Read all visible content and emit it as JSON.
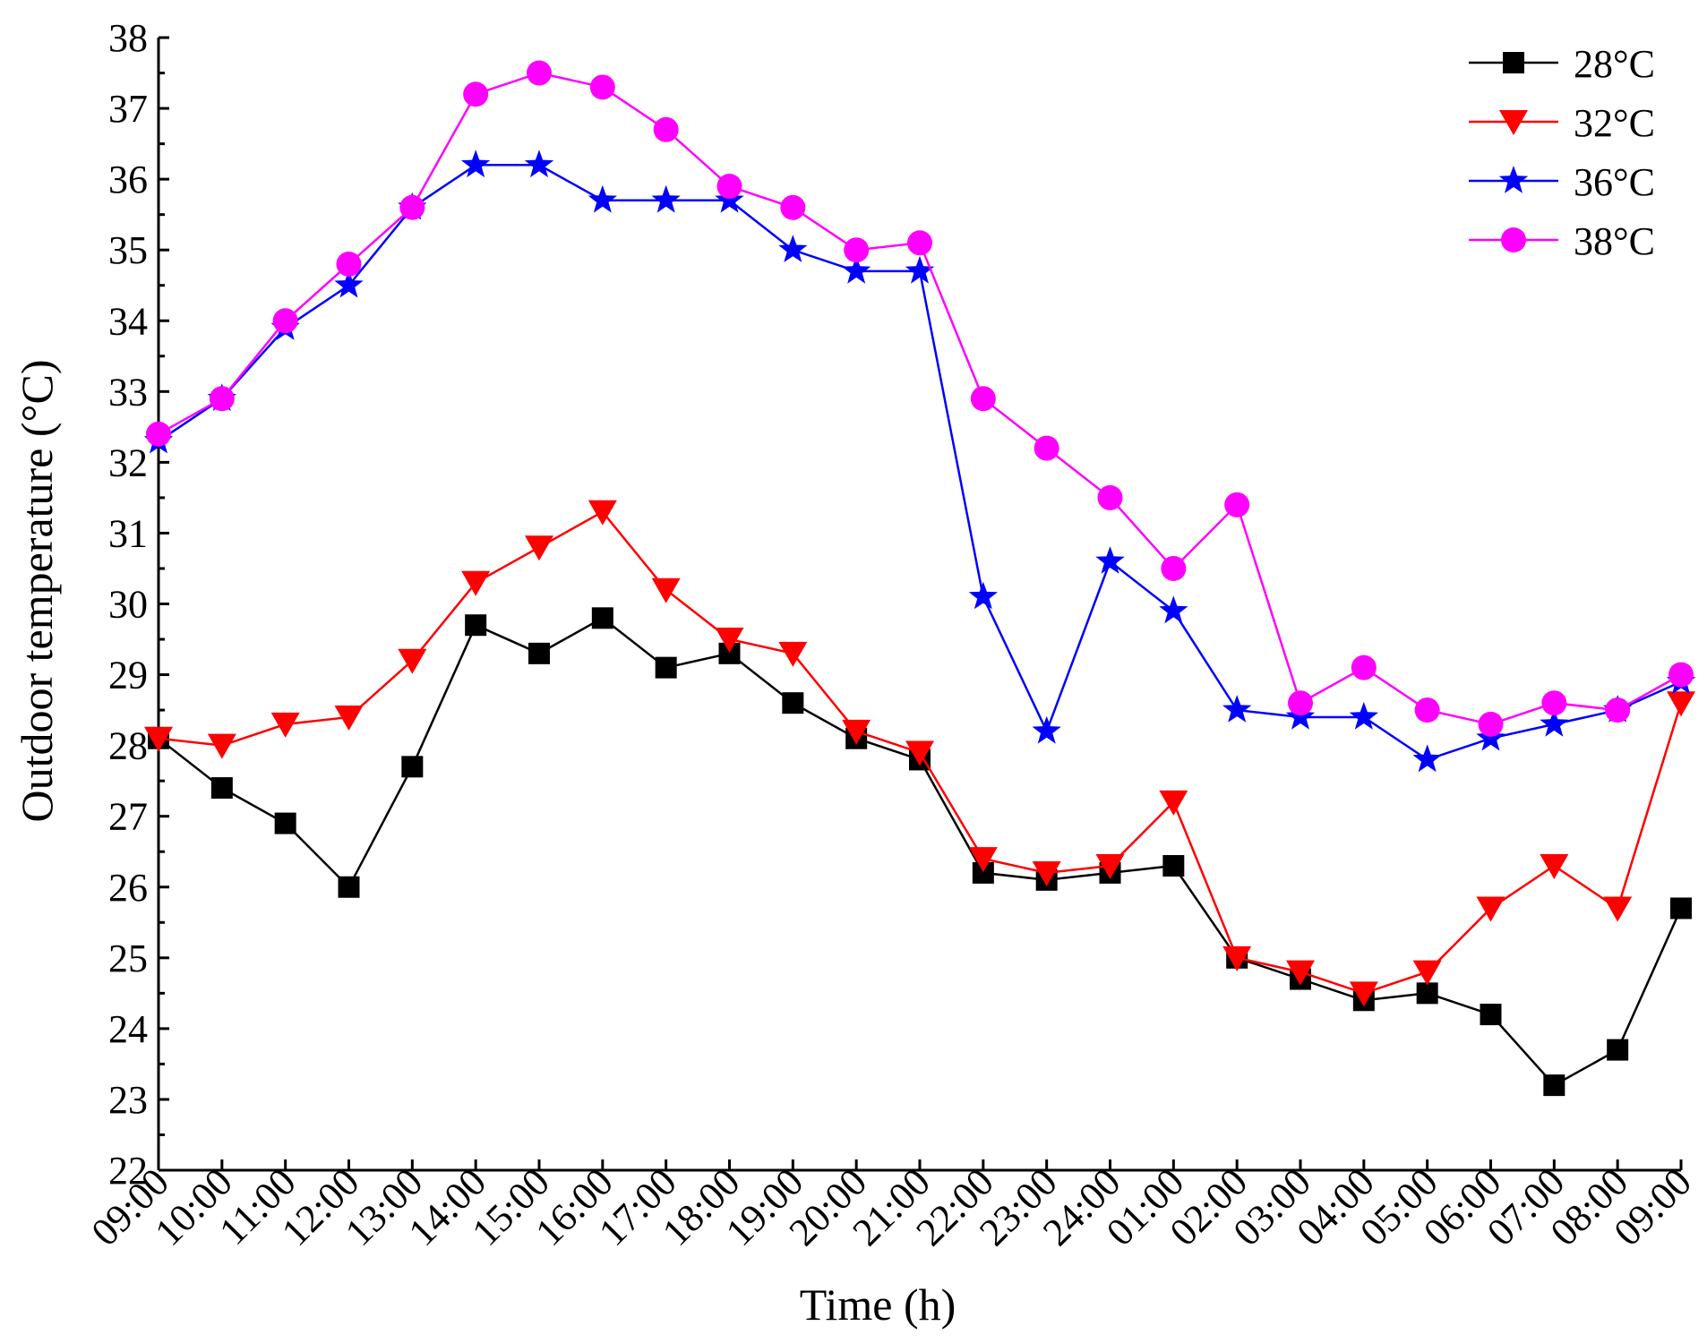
{
  "chart_data": {
    "type": "line",
    "title": "",
    "xlabel": "Time (h)",
    "ylabel": "Outdoor temperature (°C)",
    "ylim": [
      22,
      38
    ],
    "yticks": [
      "22",
      "23",
      "24",
      "25",
      "26",
      "27",
      "28",
      "29",
      "30",
      "31",
      "32",
      "33",
      "34",
      "35",
      "36",
      "37",
      "38"
    ],
    "categories": [
      "09:00",
      "10:00",
      "11:00",
      "12:00",
      "13:00",
      "14:00",
      "15:00",
      "16:00",
      "17:00",
      "18:00",
      "19:00",
      "20:00",
      "21:00",
      "22:00",
      "23:00",
      "24:00",
      "01:00",
      "02:00",
      "03:00",
      "04:00",
      "05:00",
      "06:00",
      "07:00",
      "08:00",
      "09:00"
    ],
    "legend_position": "top-right",
    "grid": false,
    "series": [
      {
        "name": "28°C",
        "color": "#000000",
        "marker": "square",
        "values": [
          28.1,
          27.4,
          26.9,
          26.0,
          27.7,
          29.7,
          29.3,
          29.8,
          29.1,
          29.3,
          28.6,
          28.1,
          27.8,
          26.2,
          26.1,
          26.2,
          26.3,
          25.0,
          24.7,
          24.4,
          24.5,
          24.2,
          23.2,
          23.7,
          25.7
        ]
      },
      {
        "name": "32°C",
        "color": "#ff0000",
        "marker": "triangle-down",
        "values": [
          28.1,
          28.0,
          28.3,
          28.4,
          29.2,
          30.3,
          30.8,
          31.3,
          30.2,
          29.5,
          29.3,
          28.2,
          27.9,
          26.4,
          26.2,
          26.3,
          27.2,
          25.0,
          24.8,
          24.5,
          24.8,
          25.7,
          26.3,
          25.7,
          28.6
        ]
      },
      {
        "name": "36°C",
        "color": "#0000ff",
        "marker": "star",
        "values": [
          32.3,
          32.9,
          33.9,
          34.5,
          35.6,
          36.2,
          36.2,
          35.7,
          35.7,
          35.7,
          35.0,
          34.7,
          34.7,
          30.1,
          28.2,
          30.6,
          29.9,
          28.5,
          28.4,
          28.4,
          27.8,
          28.1,
          28.3,
          28.5,
          28.9
        ]
      },
      {
        "name": "38°C",
        "color": "#ff00ff",
        "marker": "circle",
        "values": [
          32.4,
          32.9,
          34.0,
          34.8,
          35.6,
          37.2,
          37.5,
          37.3,
          36.7,
          35.9,
          35.6,
          35.0,
          35.1,
          32.9,
          32.2,
          31.5,
          30.5,
          31.4,
          28.6,
          29.1,
          28.5,
          28.3,
          28.6,
          28.5,
          29.0
        ]
      }
    ]
  }
}
